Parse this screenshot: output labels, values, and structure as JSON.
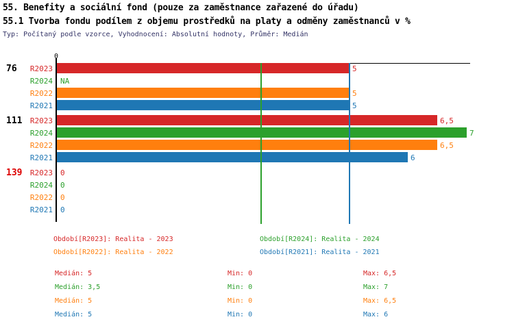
{
  "header": {
    "title_line1": "55. Benefity a sociální fond (pouze za zaměstnance zařazené do úřadu)",
    "title_line2": "55.1 Tvorba fondu podílem z objemu prostředků na platy a odměny zaměstnanců v %",
    "subtitle": "Typ: Počítaný podle vzorce, Vyhodnocení: Absolutní hodnoty, Průměr: Medián"
  },
  "colors": {
    "R2023": "#d62728",
    "R2024": "#2ca02c",
    "R2022": "#ff7f0e",
    "R2021": "#1f77b4",
    "axis": "#000000",
    "group_id_default": "#000000",
    "group_id_alert": "#dd0000",
    "subtitle_text": "#333366"
  },
  "chart_data": {
    "type": "bar",
    "orientation": "horizontal",
    "title": "55.1 Tvorba fondu podílem z objemu prostředků na platy a odměny zaměstnanců v %",
    "x_axis": {
      "min": 0,
      "max": 7,
      "ticks": [
        {
          "value": 0,
          "label": "0"
        }
      ],
      "grid": false
    },
    "series_order": [
      "R2023",
      "R2024",
      "R2022",
      "R2021"
    ],
    "groups": [
      {
        "id": "76",
        "id_style": "default",
        "rows": [
          {
            "series": "R2023",
            "value": 5,
            "label": "5"
          },
          {
            "series": "R2024",
            "value": null,
            "label": "NA"
          },
          {
            "series": "R2022",
            "value": 5,
            "label": "5"
          },
          {
            "series": "R2021",
            "value": 5,
            "label": "5"
          }
        ]
      },
      {
        "id": "111",
        "id_style": "default",
        "rows": [
          {
            "series": "R2023",
            "value": 6.5,
            "label": "6,5"
          },
          {
            "series": "R2024",
            "value": 7,
            "label": "7"
          },
          {
            "series": "R2022",
            "value": 6.5,
            "label": "6,5"
          },
          {
            "series": "R2021",
            "value": 6,
            "label": "6"
          }
        ]
      },
      {
        "id": "139",
        "id_style": "alert",
        "rows": [
          {
            "series": "R2023",
            "value": 0,
            "label": "0"
          },
          {
            "series": "R2024",
            "value": 0,
            "label": "0"
          },
          {
            "series": "R2022",
            "value": 0,
            "label": "0"
          },
          {
            "series": "R2021",
            "value": 0,
            "label": "0"
          }
        ]
      }
    ],
    "median_lines": [
      {
        "series": "R2024",
        "value": 3.5
      },
      {
        "series": "R2021",
        "value": 5
      }
    ],
    "stats": [
      {
        "series": "R2023",
        "median": "5",
        "min": "0",
        "max": "6,5"
      },
      {
        "series": "R2024",
        "median": "3,5",
        "min": "0",
        "max": "7"
      },
      {
        "series": "R2022",
        "median": "5",
        "min": "0",
        "max": "6,5"
      },
      {
        "series": "R2021",
        "median": "5",
        "min": "0",
        "max": "6"
      }
    ]
  },
  "legend": {
    "items": [
      {
        "series": "R2023",
        "label": "Období[R2023]: Realita - 2023",
        "col": 0,
        "row": 0
      },
      {
        "series": "R2024",
        "label": "Období[R2024]: Realita - 2024",
        "col": 1,
        "row": 0
      },
      {
        "series": "R2022",
        "label": "Období[R2022]: Realita - 2022",
        "col": 0,
        "row": 1
      },
      {
        "series": "R2021",
        "label": "Období[R2021]: Realita - 2021",
        "col": 1,
        "row": 1
      }
    ]
  },
  "stats_labels": {
    "median": "Medián",
    "min": "Min",
    "max": "Max"
  }
}
